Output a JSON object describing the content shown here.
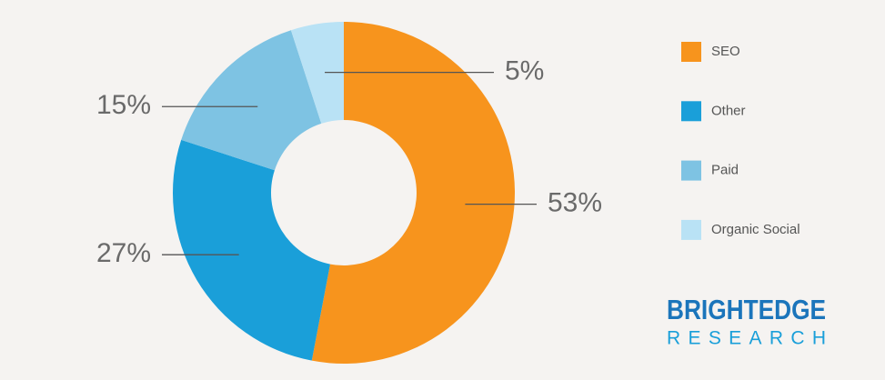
{
  "chart_data": {
    "type": "donut",
    "categories": [
      "SEO",
      "Other",
      "Paid",
      "Organic Social"
    ],
    "values": [
      53,
      27,
      15,
      5
    ],
    "value_labels": [
      "53%",
      "27%",
      "15%",
      "5%"
    ],
    "colors": [
      "#f7941d",
      "#1a9fd9",
      "#7ec3e3",
      "#b9e2f5"
    ],
    "legend": "right",
    "brand": "BRIGHTEDGE",
    "brand_subtitle": "RESEARCH"
  }
}
